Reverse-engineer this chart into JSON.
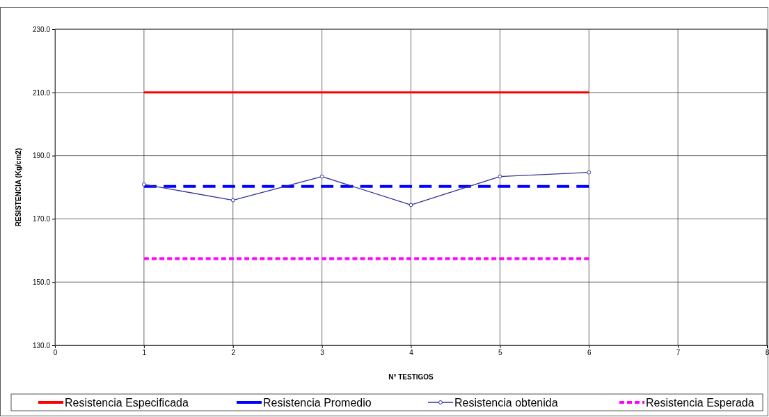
{
  "chart_data": {
    "type": "line",
    "xlabel": "N° TESTIGOS",
    "ylabel": "RESISTENCIA (Kg/cm2)",
    "x": [
      1,
      2,
      3,
      4,
      5,
      6
    ],
    "xlim": [
      0,
      8
    ],
    "xticks": [
      0,
      1,
      2,
      3,
      4,
      5,
      6,
      7,
      8
    ],
    "ylim": [
      130,
      230
    ],
    "yticks": [
      {
        "value": 130,
        "label": "130.0"
      },
      {
        "value": 150,
        "label": "150.0"
      },
      {
        "value": 170,
        "label": "170.0"
      },
      {
        "value": 190,
        "label": "190.0"
      },
      {
        "value": 210,
        "label": "210.0"
      },
      {
        "value": 230,
        "label": "230.0"
      }
    ],
    "grid": true,
    "legend": "bottom",
    "series": [
      {
        "name": "Resistencia Especificada",
        "color": "#ff0000",
        "line_style": "solid",
        "marker": "none",
        "values": [
          210,
          210,
          210,
          210,
          210,
          210
        ]
      },
      {
        "name": "Resistencia Promedio",
        "color": "#0000ff",
        "line_style": "dashed",
        "marker": "none",
        "values": [
          180.3,
          180.3,
          180.3,
          180.3,
          180.3,
          180.3
        ]
      },
      {
        "name": "Resistencia obtenida",
        "color": "#333399",
        "line_style": "solid",
        "marker": "circle",
        "values": [
          180.9,
          175.9,
          183.4,
          174.4,
          183.4,
          184.7
        ]
      },
      {
        "name": "Resistencia Esperada",
        "color": "#ff00ff",
        "line_style": "dotted",
        "marker": "none",
        "values": [
          157.4,
          157.4,
          157.4,
          157.4,
          157.4,
          157.4
        ]
      }
    ]
  }
}
